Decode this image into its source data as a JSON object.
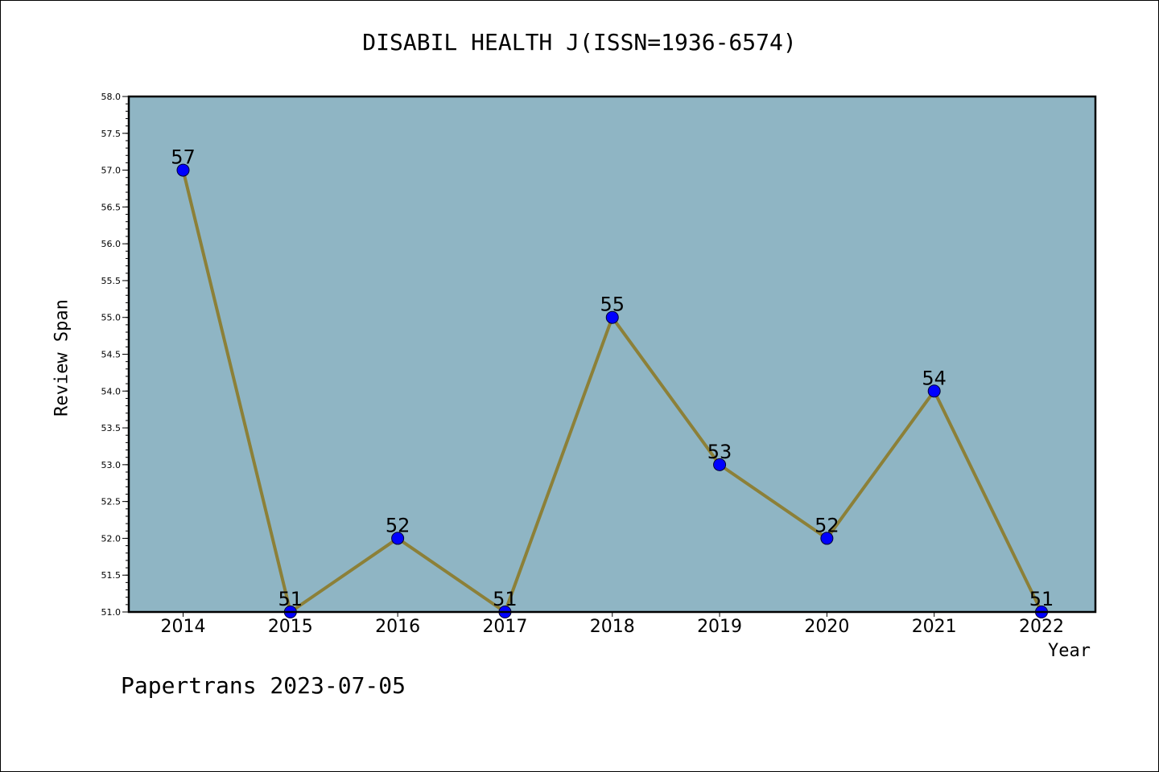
{
  "chart_data": {
    "type": "line",
    "title": "DISABIL HEALTH J(ISSN=1936-6574)",
    "xlabel": "Year",
    "ylabel": "Review Span",
    "x": [
      "2014",
      "2015",
      "2016",
      "2017",
      "2018",
      "2019",
      "2020",
      "2021",
      "2022"
    ],
    "series": [
      {
        "values": [
          57,
          51,
          52,
          51,
          55,
          53,
          52,
          54,
          51
        ]
      }
    ],
    "data_labels": [
      "57",
      "51",
      "52",
      "51",
      "55",
      "53",
      "52",
      "54",
      "51"
    ],
    "ylim": [
      51.0,
      58.0
    ],
    "yticks": [
      "51.0",
      "51.5",
      "52.0",
      "52.5",
      "53.0",
      "53.5",
      "54.0",
      "54.5",
      "55.0",
      "55.5",
      "56.0",
      "56.5",
      "57.0",
      "57.5",
      "58.0"
    ],
    "grid": false,
    "colors": {
      "plot_background": "#8fb5c4",
      "line": "#8c8038",
      "marker": "#0000ff"
    }
  },
  "footer": "Papertrans 2023-07-05"
}
